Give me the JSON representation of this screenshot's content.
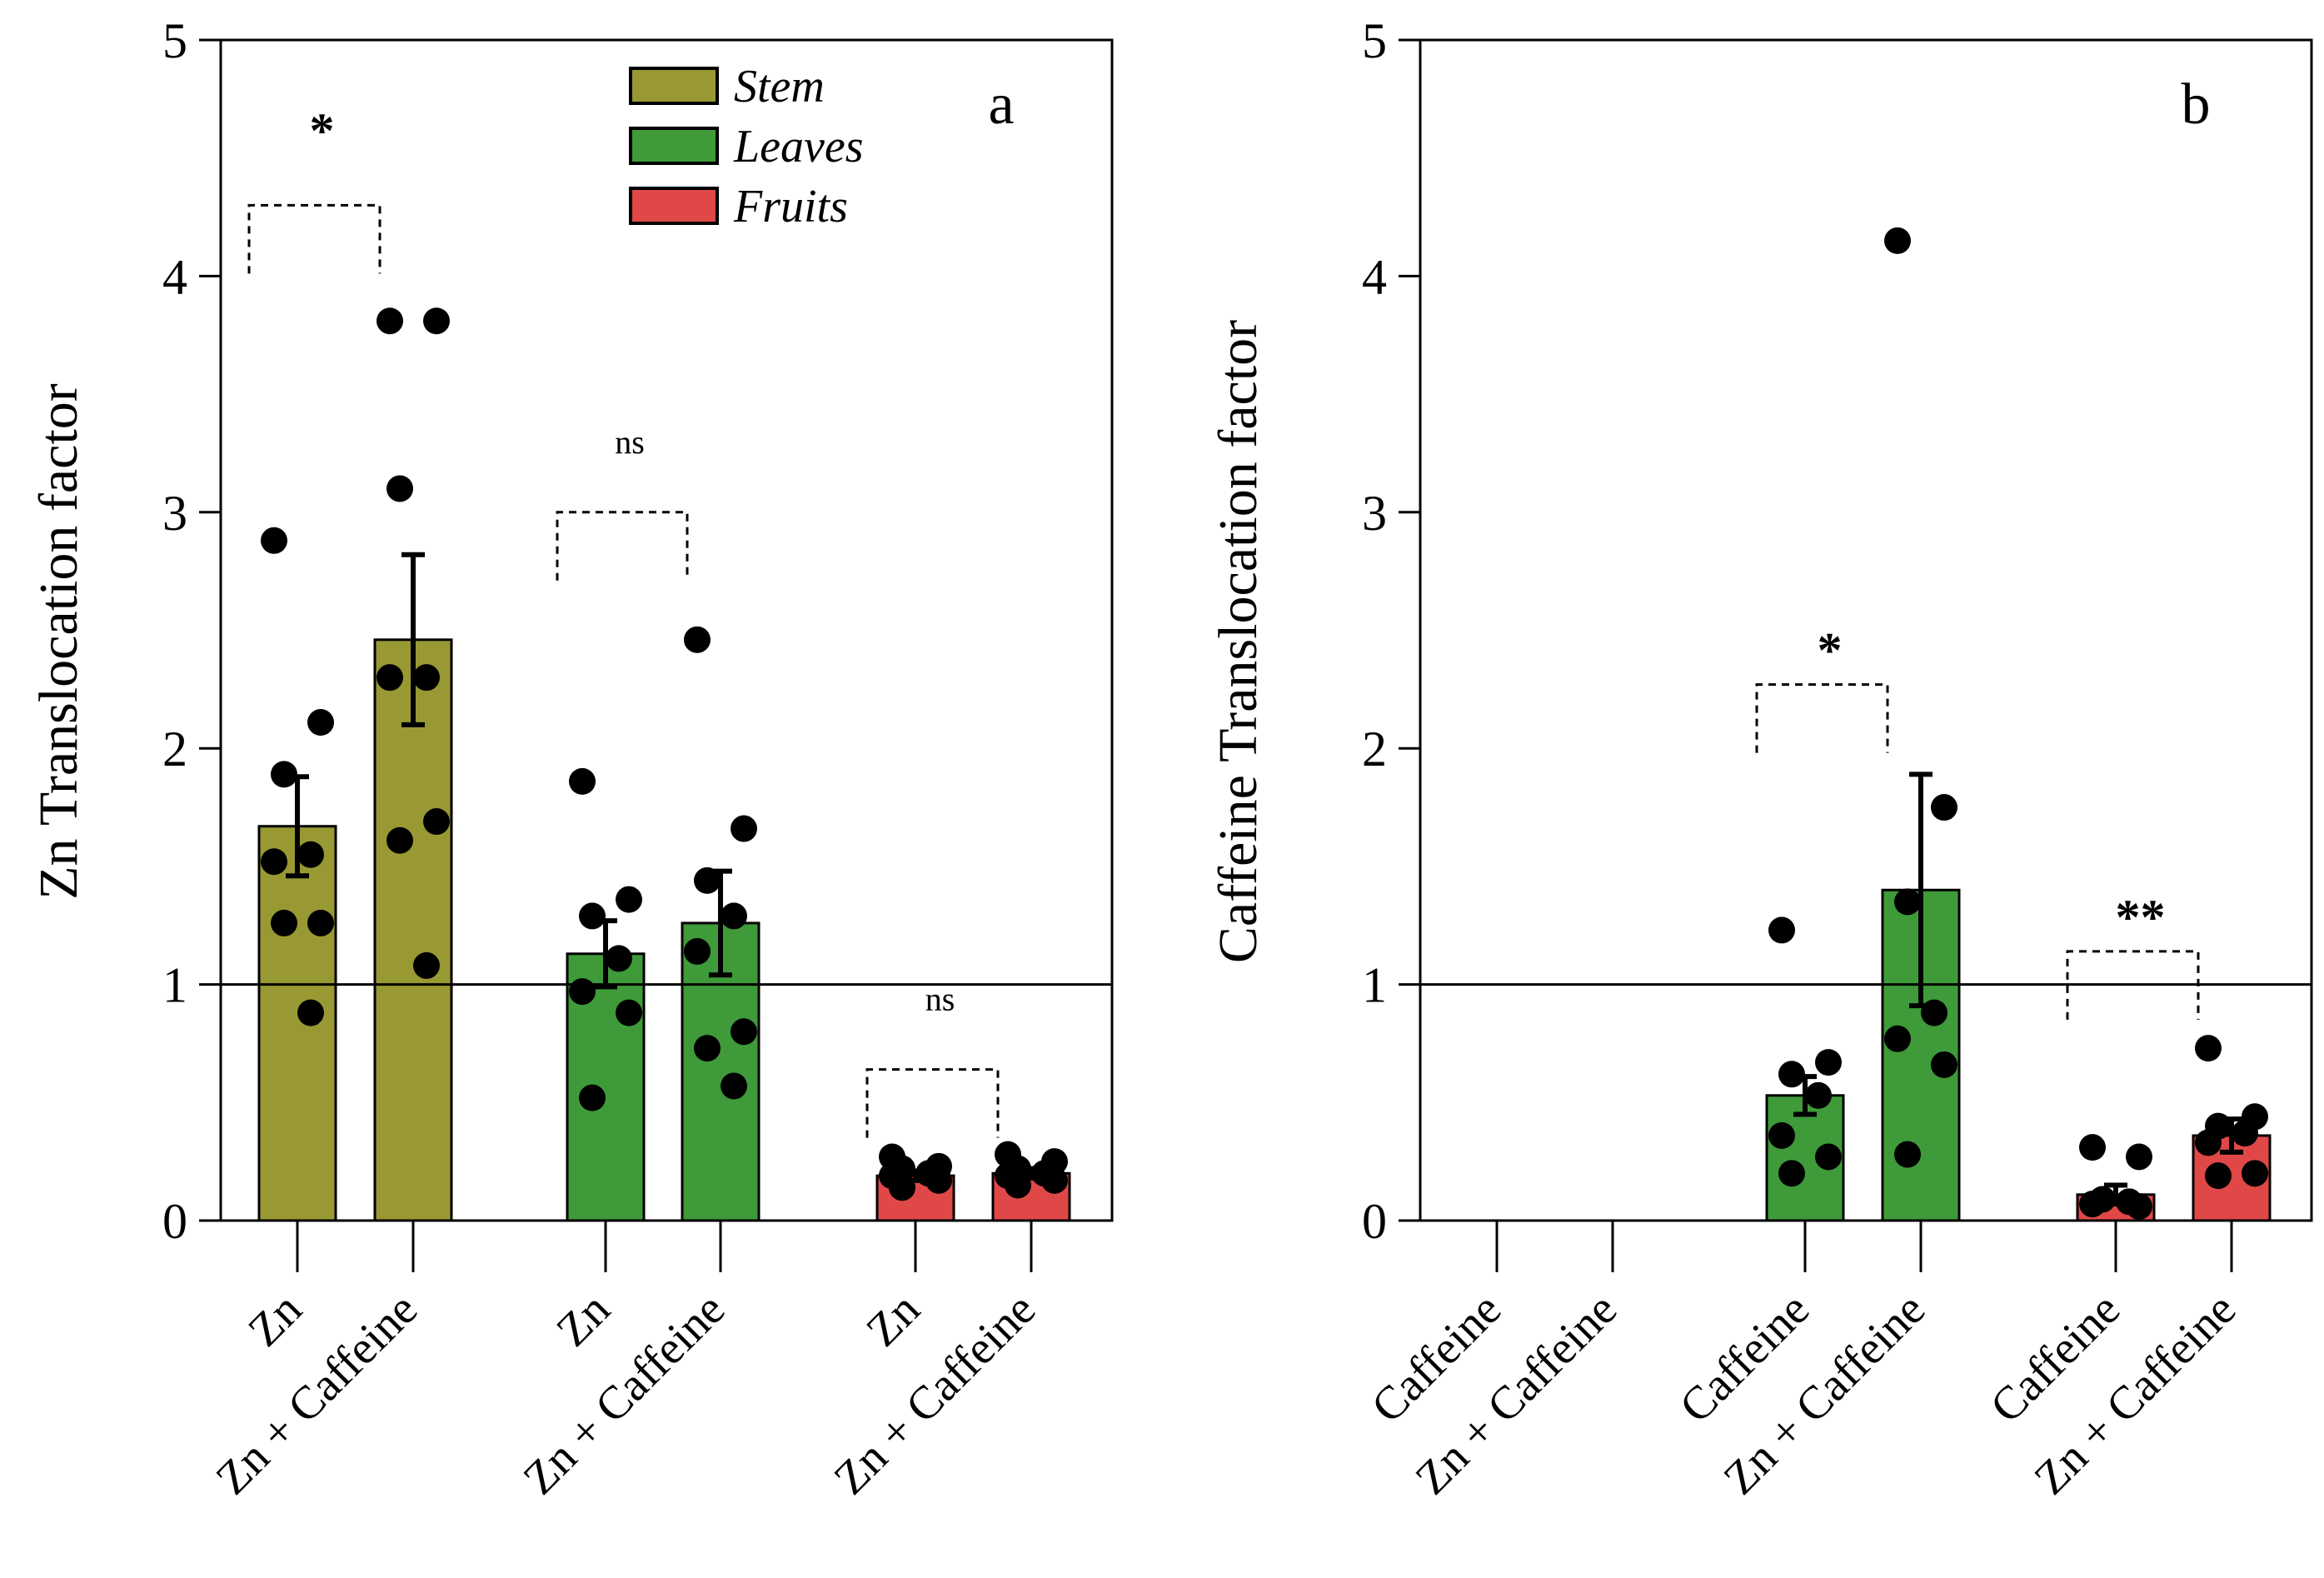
{
  "chart_data": [
    {
      "type": "bar",
      "panel_label": "a",
      "ylabel": "Zn Translocation factor",
      "ylim": [
        0,
        5
      ],
      "yticks": [
        "0",
        "1",
        "2",
        "3",
        "4",
        "5"
      ],
      "reference_line": 1,
      "legend": {
        "position": "top-center",
        "entries": [
          {
            "name": "Stem",
            "color": "#999933"
          },
          {
            "name": "Leaves",
            "color": "#3f9a3a"
          },
          {
            "name": "Fruits",
            "color": "#e04848"
          }
        ]
      },
      "categories": [
        {
          "tissue": "Stem",
          "treatment": "Zn",
          "mean": 1.67,
          "sem": 0.21,
          "color": "#999933",
          "points": [
            2.88,
            2.11,
            1.89,
            1.55,
            1.52,
            1.26,
            1.26,
            0.88
          ]
        },
        {
          "tissue": "Stem",
          "treatment": "Zn + Caffeine",
          "mean": 2.46,
          "sem": 0.36,
          "color": "#999933",
          "points": [
            3.81,
            3.81,
            3.1,
            2.3,
            2.3,
            1.69,
            1.61,
            1.08
          ]
        },
        {
          "tissue": "Leaves",
          "treatment": "Zn",
          "mean": 1.13,
          "sem": 0.14,
          "color": "#3f9a3a",
          "points": [
            1.86,
            1.36,
            1.29,
            1.11,
            0.97,
            0.88,
            0.52
          ]
        },
        {
          "tissue": "Leaves",
          "treatment": "Zn + Caffeine",
          "mean": 1.26,
          "sem": 0.22,
          "color": "#3f9a3a",
          "points": [
            2.46,
            1.66,
            1.44,
            1.29,
            1.14,
            0.8,
            0.73,
            0.57
          ]
        },
        {
          "tissue": "Fruits",
          "treatment": "Zn",
          "mean": 0.19,
          "sem": 0.02,
          "color": "#e04848",
          "points": [
            0.27,
            0.23,
            0.22,
            0.2,
            0.19,
            0.17,
            0.14
          ]
        },
        {
          "tissue": "Fruits",
          "treatment": "Zn + Caffeine",
          "mean": 0.2,
          "sem": 0.02,
          "color": "#e04848",
          "points": [
            0.28,
            0.25,
            0.22,
            0.2,
            0.19,
            0.17,
            0.15
          ]
        }
      ],
      "significance": [
        {
          "label": "*",
          "between": [
            0,
            1
          ],
          "bracket_y": 4.3,
          "label_y": 4.65
        },
        {
          "label": "ns",
          "between": [
            2,
            3
          ],
          "bracket_y": 3.0,
          "label_y": 3.3
        },
        {
          "label": "ns",
          "between": [
            4,
            5
          ],
          "bracket_y": 0.64,
          "label_y": 0.94
        }
      ]
    },
    {
      "type": "bar",
      "panel_label": "b",
      "ylabel": "Caffeine Translocation factor",
      "ylim": [
        0,
        5
      ],
      "yticks": [
        "0",
        "1",
        "2",
        "3",
        "4",
        "5"
      ],
      "reference_line": 1,
      "categories": [
        {
          "tissue": "Stem",
          "treatment": "Caffeine",
          "mean": 0,
          "sem": 0,
          "color": "#999933",
          "points": []
        },
        {
          "tissue": "Stem",
          "treatment": "Zn + Caffeine",
          "mean": 0,
          "sem": 0,
          "color": "#999933",
          "points": []
        },
        {
          "tissue": "Leaves",
          "treatment": "Caffeine",
          "mean": 0.53,
          "sem": 0.08,
          "color": "#3f9a3a",
          "points": [
            1.23,
            0.67,
            0.62,
            0.53,
            0.36,
            0.27,
            0.2
          ]
        },
        {
          "tissue": "Leaves",
          "treatment": "Zn + Caffeine",
          "mean": 1.4,
          "sem": 0.49,
          "color": "#3f9a3a",
          "points": [
            4.15,
            1.75,
            1.35,
            0.88,
            0.77,
            0.66,
            0.28
          ]
        },
        {
          "tissue": "Fruits",
          "treatment": "Caffeine",
          "mean": 0.11,
          "sem": 0.04,
          "color": "#e04848",
          "points": [
            0.31,
            0.27,
            0.09,
            0.08,
            0.07,
            0.06
          ]
        },
        {
          "tissue": "Fruits",
          "treatment": "Zn + Caffeine",
          "mean": 0.36,
          "sem": 0.07,
          "color": "#e04848",
          "points": [
            0.73,
            0.44,
            0.4,
            0.37,
            0.33,
            0.2,
            0.19
          ]
        }
      ],
      "significance": [
        {
          "label": "*",
          "between": [
            2,
            3
          ],
          "bracket_y": 2.27,
          "label_y": 2.45
        },
        {
          "label": "**",
          "between": [
            4,
            5
          ],
          "bracket_y": 1.14,
          "label_y": 1.32
        }
      ]
    }
  ]
}
